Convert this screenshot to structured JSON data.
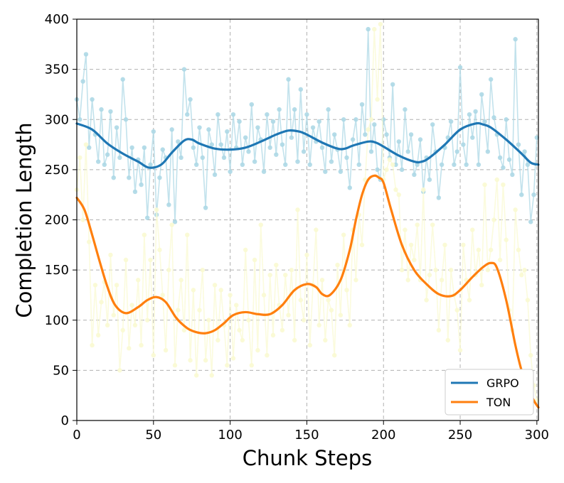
{
  "chart_data": {
    "type": "line",
    "title": "",
    "xlabel": "Chunk Steps",
    "ylabel": "Completion Length",
    "xlim": [
      0,
      301
    ],
    "ylim": [
      0,
      400
    ],
    "xticks": [
      0,
      50,
      100,
      150,
      200,
      250,
      300
    ],
    "yticks": [
      0,
      50,
      100,
      150,
      200,
      250,
      300,
      350,
      400
    ],
    "grid": true,
    "legend_position": "bottom-right",
    "series": [
      {
        "name": "GRPO",
        "color": "#1f77b4",
        "raw_color": "#add8e6",
        "smooth_x": [
          0,
          10,
          20,
          30,
          40,
          47,
          55,
          62,
          70,
          75,
          80,
          90,
          100,
          110,
          120,
          130,
          138,
          145,
          150,
          160,
          170,
          175,
          180,
          190,
          195,
          200,
          210,
          220,
          225,
          230,
          240,
          250,
          260,
          265,
          270,
          280,
          290,
          296,
          301
        ],
        "smooth_y": [
          296,
          290,
          276,
          266,
          258,
          252,
          255,
          267,
          279,
          280,
          276,
          271,
          270,
          272,
          278,
          285,
          289,
          288,
          285,
          277,
          271,
          271,
          274,
          278,
          277,
          273,
          264,
          258,
          258,
          262,
          275,
          290,
          296,
          295,
          292,
          280,
          266,
          257,
          255
        ],
        "raw_x": [
          0,
          2,
          4,
          6,
          8,
          10,
          12,
          14,
          16,
          18,
          20,
          22,
          24,
          26,
          28,
          30,
          32,
          34,
          36,
          38,
          40,
          42,
          44,
          46,
          48,
          50,
          52,
          54,
          56,
          58,
          60,
          62,
          64,
          66,
          68,
          70,
          72,
          74,
          76,
          78,
          80,
          82,
          84,
          86,
          88,
          90,
          92,
          94,
          96,
          98,
          100,
          102,
          104,
          106,
          108,
          110,
          112,
          114,
          116,
          118,
          120,
          122,
          124,
          126,
          128,
          130,
          132,
          134,
          136,
          138,
          140,
          142,
          144,
          146,
          148,
          150,
          152,
          154,
          156,
          158,
          160,
          162,
          164,
          166,
          168,
          170,
          172,
          174,
          176,
          178,
          180,
          182,
          184,
          186,
          188,
          190,
          192,
          194,
          196,
          198,
          200,
          202,
          204,
          206,
          208,
          210,
          212,
          214,
          216,
          218,
          220,
          222,
          224,
          226,
          228,
          230,
          232,
          234,
          236,
          238,
          240,
          242,
          244,
          246,
          248,
          250,
          252,
          254,
          256,
          258,
          260,
          262,
          264,
          266,
          268,
          270,
          272,
          274,
          276,
          278,
          280,
          282,
          284,
          286,
          288,
          290,
          292,
          294,
          296,
          298,
          300
        ],
        "raw_y": [
          320,
          300,
          338,
          365,
          272,
          320,
          285,
          258,
          310,
          255,
          265,
          308,
          242,
          292,
          262,
          340,
          300,
          242,
          272,
          228,
          260,
          235,
          272,
          202,
          255,
          288,
          205,
          242,
          270,
          262,
          215,
          290,
          198,
          278,
          262,
          350,
          305,
          320,
          272,
          255,
          292,
          262,
          212,
          290,
          275,
          245,
          305,
          275,
          262,
          288,
          248,
          305,
          272,
          298,
          255,
          282,
          268,
          315,
          258,
          292,
          280,
          248,
          305,
          272,
          298,
          265,
          310,
          275,
          255,
          340,
          282,
          310,
          258,
          330,
          268,
          305,
          255,
          292,
          278,
          298,
          272,
          248,
          310,
          258,
          285,
          270,
          248,
          300,
          262,
          232,
          280,
          300,
          255,
          315,
          285,
          390,
          268,
          295,
          250,
          240,
          300,
          285,
          262,
          335,
          255,
          278,
          250,
          310,
          268,
          285,
          245,
          255,
          280,
          228,
          262,
          240,
          295,
          268,
          222,
          255,
          272,
          282,
          298,
          255,
          268,
          352,
          275,
          255,
          305,
          282,
          308,
          255,
          325,
          298,
          268,
          340,
          302,
          285,
          262,
          252,
          300,
          260,
          245,
          380,
          275,
          225,
          268,
          255,
          198,
          225,
          282
        ]
      },
      {
        "name": "TON",
        "color": "#ff7f0e",
        "raw_color": "#fafad2",
        "smooth_x": [
          0,
          5,
          10,
          15,
          20,
          25,
          32,
          40,
          46,
          52,
          58,
          65,
          72,
          78,
          84,
          90,
          96,
          102,
          110,
          118,
          126,
          134,
          142,
          150,
          156,
          160,
          165,
          172,
          178,
          182,
          186,
          190,
          194,
          197,
          200,
          205,
          212,
          220,
          228,
          236,
          244,
          250,
          258,
          265,
          270,
          274,
          280,
          286,
          290,
          294,
          298,
          301
        ],
        "smooth_y": [
          222,
          210,
          185,
          158,
          133,
          115,
          107,
          113,
          120,
          123,
          118,
          102,
          92,
          88,
          87,
          90,
          97,
          105,
          108,
          106,
          106,
          115,
          130,
          136,
          133,
          126,
          125,
          140,
          170,
          200,
          225,
          240,
          244,
          242,
          237,
          210,
          175,
          150,
          136,
          126,
          124,
          130,
          143,
          153,
          157,
          152,
          120,
          75,
          50,
          33,
          20,
          13
        ],
        "raw_x": [
          0,
          2,
          4,
          6,
          8,
          10,
          12,
          14,
          16,
          18,
          20,
          22,
          24,
          26,
          28,
          30,
          32,
          34,
          36,
          38,
          40,
          42,
          44,
          46,
          48,
          50,
          52,
          54,
          56,
          58,
          60,
          62,
          64,
          66,
          68,
          70,
          72,
          74,
          76,
          78,
          80,
          82,
          84,
          86,
          88,
          90,
          92,
          94,
          96,
          98,
          100,
          102,
          104,
          106,
          108,
          110,
          112,
          114,
          116,
          118,
          120,
          122,
          124,
          126,
          128,
          130,
          132,
          134,
          136,
          138,
          140,
          142,
          144,
          146,
          148,
          150,
          152,
          154,
          156,
          158,
          160,
          162,
          164,
          166,
          168,
          170,
          172,
          174,
          176,
          178,
          180,
          182,
          184,
          186,
          188,
          190,
          192,
          194,
          196,
          198,
          200,
          202,
          204,
          206,
          208,
          210,
          212,
          214,
          216,
          218,
          220,
          222,
          224,
          226,
          228,
          230,
          232,
          234,
          236,
          238,
          240,
          242,
          244,
          246,
          248,
          250,
          252,
          254,
          256,
          258,
          260,
          262,
          264,
          266,
          268,
          270,
          272,
          274,
          276,
          278,
          280,
          282,
          284,
          286,
          288,
          290,
          292,
          294,
          296,
          298,
          300
        ],
        "raw_y": [
          230,
          262,
          200,
          275,
          178,
          75,
          135,
          85,
          118,
          138,
          95,
          165,
          105,
          135,
          50,
          90,
          160,
          72,
          115,
          95,
          140,
          75,
          185,
          100,
          160,
          65,
          210,
          170,
          125,
          70,
          150,
          195,
          55,
          110,
          140,
          90,
          185,
          60,
          130,
          45,
          110,
          150,
          60,
          100,
          45,
          135,
          80,
          130,
          95,
          55,
          125,
          62,
          115,
          90,
          80,
          170,
          100,
          55,
          160,
          70,
          195,
          125,
          65,
          145,
          85,
          155,
          115,
          90,
          145,
          105,
          150,
          80,
          210,
          120,
          100,
          165,
          75,
          135,
          190,
          95,
          140,
          80,
          120,
          110,
          65,
          155,
          105,
          185,
          130,
          95,
          190,
          140,
          205,
          175,
          240,
          290,
          300,
          390,
          320,
          395,
          240,
          250,
          260,
          255,
          230,
          225,
          150,
          190,
          140,
          175,
          160,
          195,
          140,
          230,
          120,
          145,
          195,
          150,
          90,
          140,
          175,
          80,
          150,
          125,
          110,
          70,
          175,
          140,
          120,
          190,
          145,
          170,
          135,
          235,
          150,
          170,
          200,
          240,
          160,
          235,
          180,
          110,
          90,
          210,
          170,
          145,
          150,
          120,
          65,
          35,
          20
        ]
      }
    ]
  }
}
